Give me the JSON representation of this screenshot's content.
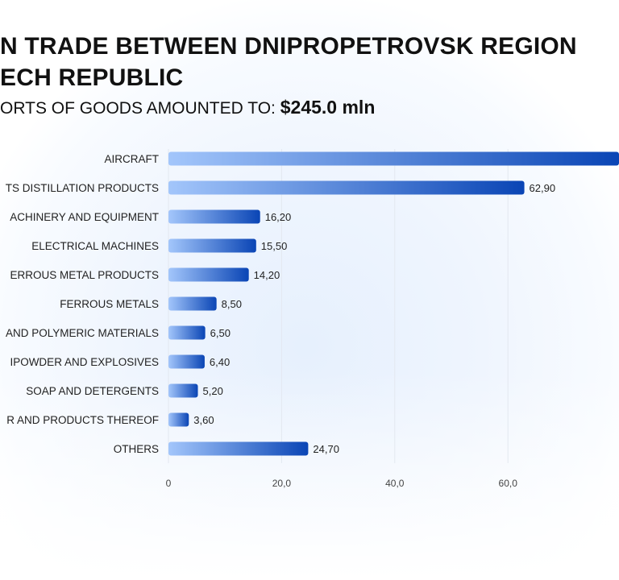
{
  "chart_data": {
    "type": "bar",
    "orientation": "horizontal",
    "title_line1": "N TRADE BETWEEN DNIPROPETROVSK REGION",
    "title_line2": "ECH REPUBLIC",
    "subtitle_prefix": "ORTS OF GOODS AMOUNTED TO:",
    "subtitle_total": "$245.0 mln",
    "categories": [
      "AIRCRAFT",
      "TS DISTILLATION PRODUCTS",
      "ACHINERY AND EQUIPMENT",
      "ELECTRICAL MACHINES",
      "ERROUS METAL PRODUCTS",
      "FERROUS METALS",
      "AND POLYMERIC MATERIALS",
      "IPOWDER AND EXPLOSIVES",
      "SOAP AND DETERGENTS",
      "R AND PRODUCTS THEREOF",
      "OTHERS"
    ],
    "values": [
      81.3,
      62.9,
      16.2,
      15.5,
      14.2,
      8.5,
      6.5,
      6.4,
      5.2,
      3.6,
      24.7
    ],
    "value_labels": [
      "",
      "62,90",
      "16,20",
      "15,50",
      "14,20",
      "8,50",
      "6,50",
      "6,40",
      "5,20",
      "3,60",
      "24,70"
    ],
    "x_ticks": [
      0,
      20,
      40,
      60
    ],
    "x_tick_labels": [
      "0",
      "20,0",
      "40,0",
      "60,0"
    ],
    "xlim": [
      0,
      80
    ],
    "grid": true,
    "colors": {
      "bar_start": "#a3c6fb",
      "bar_end": "#0a45b5"
    }
  }
}
